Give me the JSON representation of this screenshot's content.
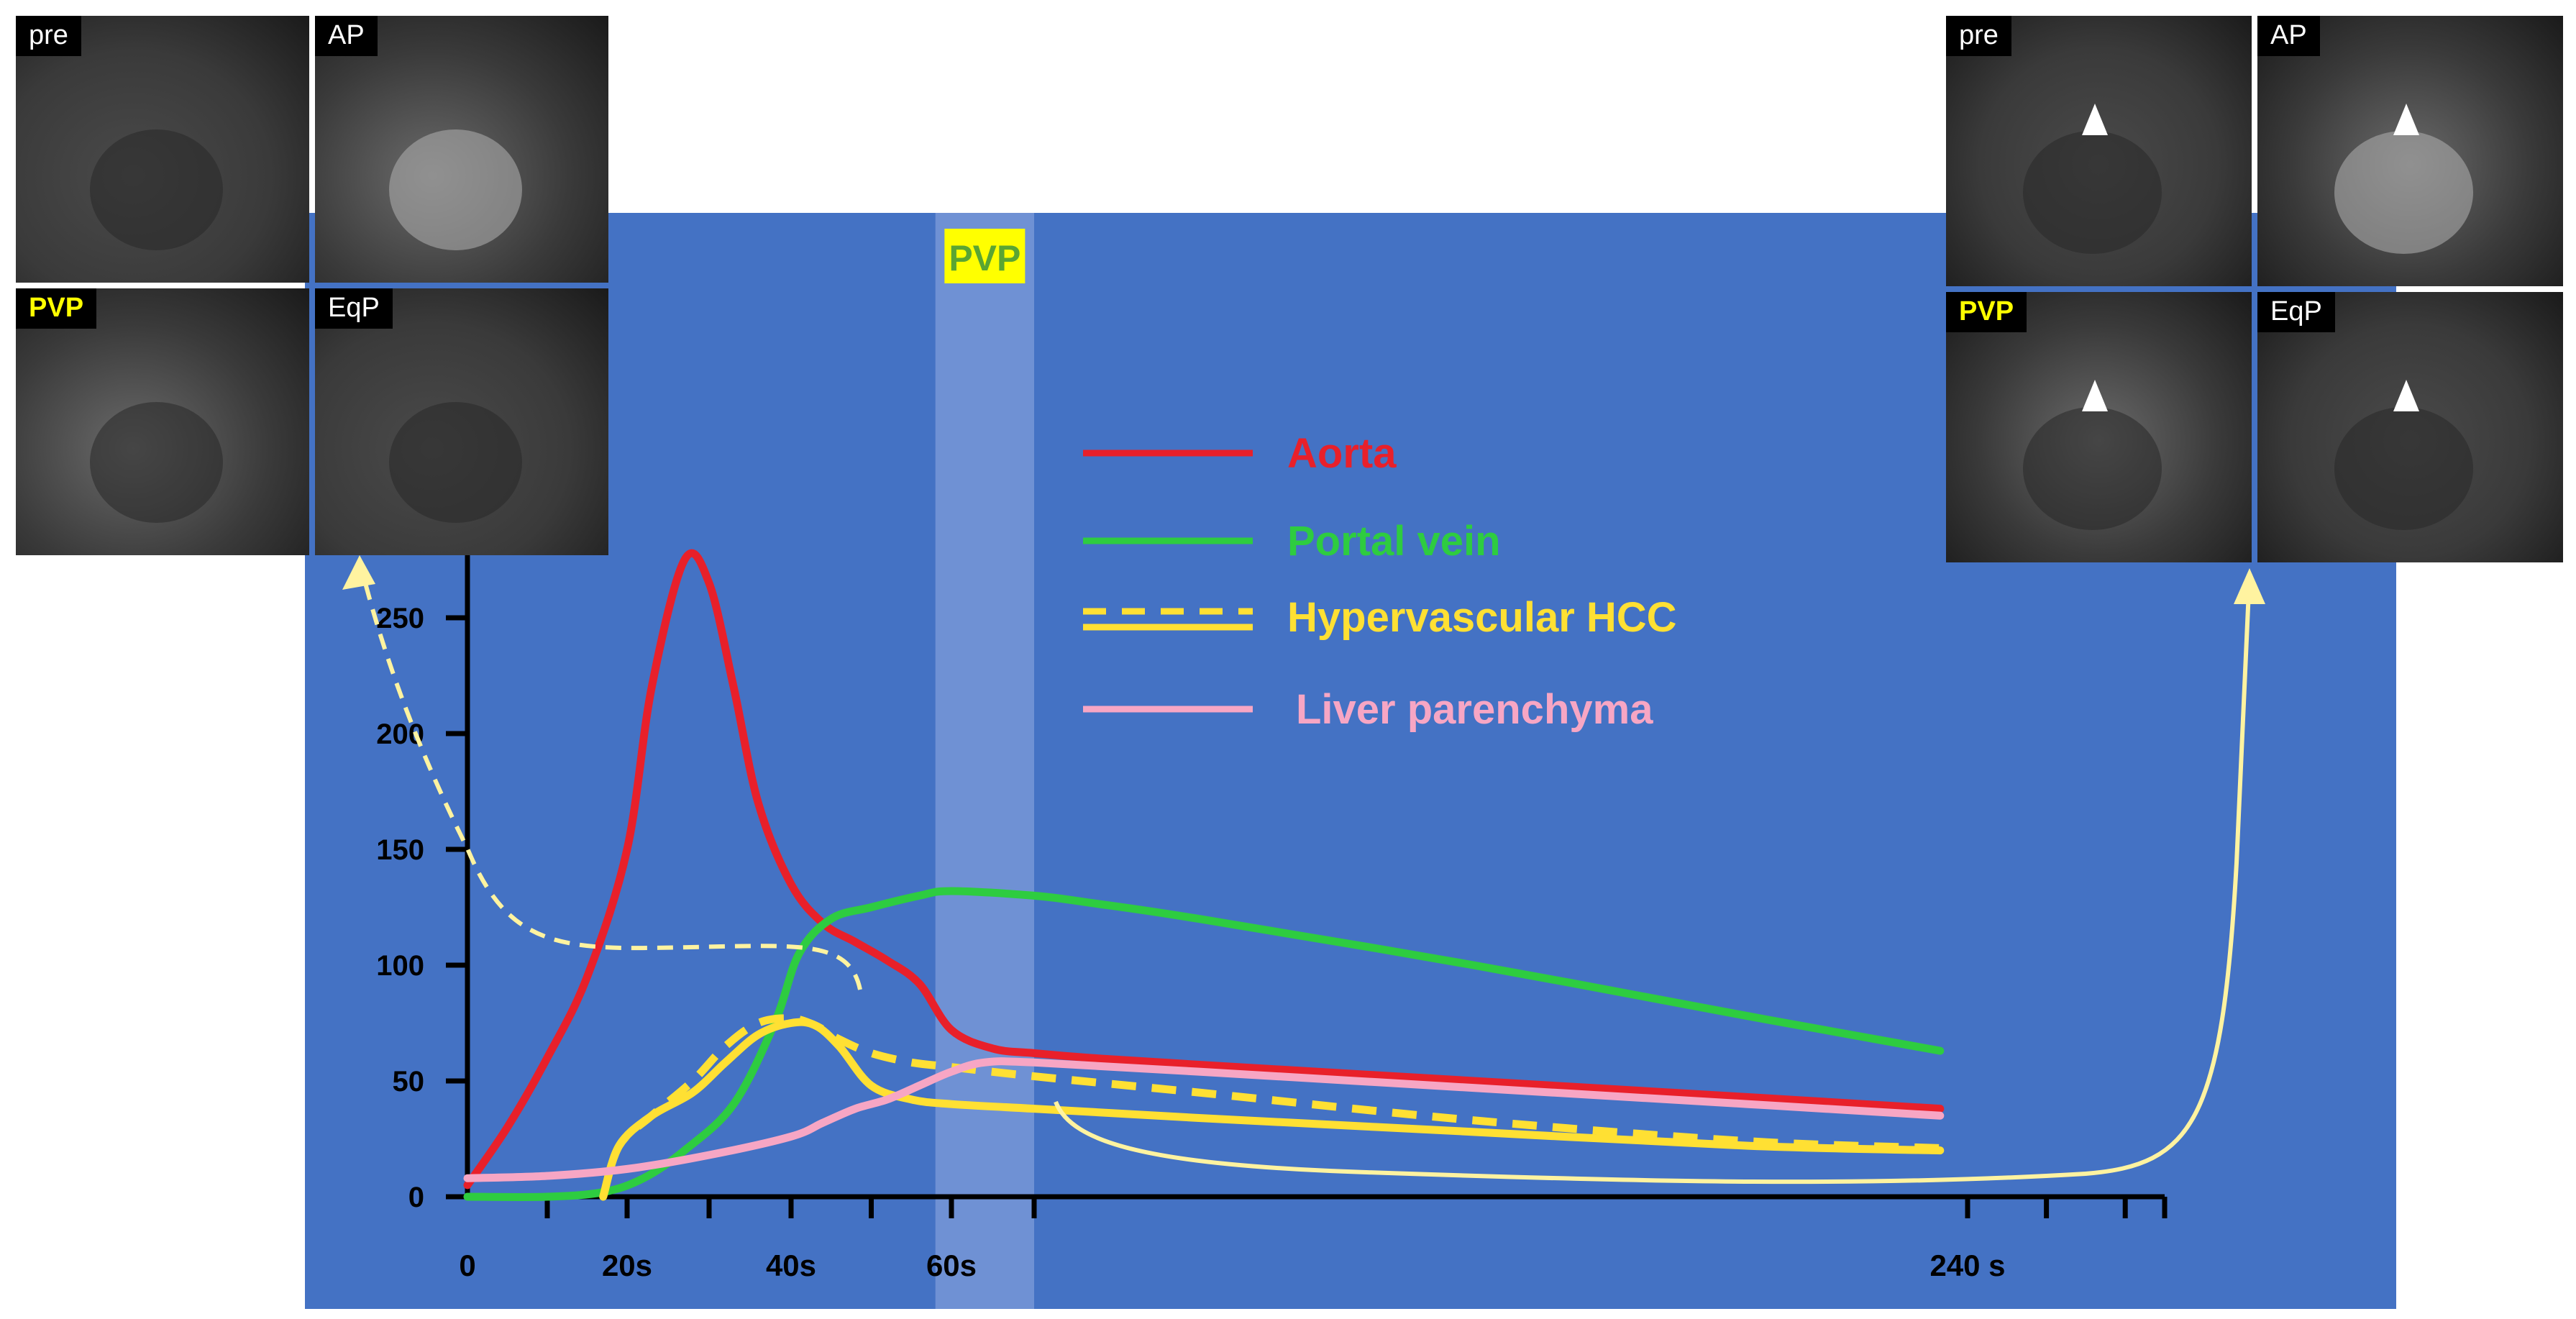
{
  "chart_data": {
    "type": "line",
    "xlabel": "",
    "ylabel": "",
    "xlim": [
      0,
      265
    ],
    "ylim": [
      0,
      275
    ],
    "x_tick_labels": [
      {
        "x": 0,
        "label": "0"
      },
      {
        "x": 20,
        "label": "20s"
      },
      {
        "x": 40,
        "label": "40s"
      },
      {
        "x": 60,
        "label": "60s"
      },
      {
        "x": 240,
        "label": "240 s"
      }
    ],
    "y_tick_labels": [
      {
        "y": 0,
        "label": "0"
      },
      {
        "y": 50,
        "label": "50"
      },
      {
        "y": 100,
        "label": "100"
      },
      {
        "y": 150,
        "label": "150"
      },
      {
        "y": 200,
        "label": "200"
      },
      {
        "y": 250,
        "label": "250"
      }
    ],
    "phase_band": {
      "label": "PVP",
      "x_start": 58,
      "x_end": 70
    },
    "series": [
      {
        "name": "Aorta",
        "color": "#e8202a",
        "style": "solid",
        "x": [
          0,
          5,
          10,
          15,
          20,
          23,
          27,
          30,
          33,
          36,
          40,
          44,
          48,
          52,
          56,
          60,
          65,
          70,
          80,
          100,
          150,
          200,
          235
        ],
        "y": [
          5,
          30,
          60,
          95,
          150,
          220,
          275,
          265,
          220,
          170,
          135,
          118,
          110,
          102,
          92,
          72,
          64,
          62,
          60,
          57,
          50,
          43,
          38
        ]
      },
      {
        "name": "Portal vein",
        "color": "#2ecc40",
        "style": "solid",
        "x": [
          0,
          10,
          17,
          22,
          27,
          33,
          38,
          41,
          45,
          50,
          56,
          60,
          70,
          80,
          100,
          150,
          200,
          235
        ],
        "y": [
          0,
          0,
          2,
          8,
          20,
          40,
          75,
          105,
          120,
          125,
          130,
          132,
          130,
          127,
          120,
          100,
          78,
          63
        ]
      },
      {
        "name": "Hypervascular HCC",
        "color": "#ffe033",
        "style": "solid",
        "x": [
          17,
          19,
          23,
          28,
          32,
          36,
          40,
          43,
          46,
          50,
          55,
          60,
          70,
          100,
          150,
          200,
          235
        ],
        "y": [
          0,
          22,
          35,
          45,
          58,
          70,
          75,
          74,
          65,
          48,
          42,
          40,
          38,
          34,
          28,
          22,
          20
        ]
      },
      {
        "name": "Hypervascular HCC",
        "color": "#ffe033",
        "style": "dashed",
        "x": [
          17,
          19,
          23,
          28,
          32,
          36,
          40,
          43,
          46,
          50,
          55,
          60,
          70,
          100,
          150,
          200,
          235
        ],
        "y": [
          0,
          22,
          35,
          50,
          65,
          75,
          77,
          74,
          68,
          62,
          58,
          56,
          52,
          45,
          33,
          24,
          21
        ]
      },
      {
        "name": "Liver parenchyma",
        "color": "#f7a6c4",
        "style": "solid",
        "x": [
          0,
          10,
          20,
          30,
          40,
          44,
          48,
          52,
          56,
          60,
          64,
          70,
          100,
          150,
          200,
          235
        ],
        "y": [
          8,
          9,
          12,
          18,
          26,
          32,
          38,
          42,
          48,
          54,
          58,
          58,
          54,
          47,
          40,
          35
        ]
      }
    ],
    "legend": [
      {
        "label": "Aorta",
        "color": "#e8202a",
        "style": "solid"
      },
      {
        "label": "Portal vein",
        "color": "#2ecc40",
        "style": "solid"
      },
      {
        "label": "Hypervascular HCC",
        "color": "#ffe033",
        "style": "solid-dashed"
      },
      {
        "label": "Liver parenchyma",
        "color": "#f7a6c4",
        "style": "solid"
      }
    ],
    "legend_position": "top-center",
    "grid": false,
    "background_color": "#4472c4"
  },
  "ct_groups": {
    "left": {
      "panels": [
        {
          "label": "pre",
          "highlight": false
        },
        {
          "label": "AP",
          "highlight": false
        },
        {
          "label": "PVP",
          "highlight": true
        },
        {
          "label": "EqP",
          "highlight": false
        }
      ]
    },
    "right": {
      "panels": [
        {
          "label": "pre",
          "highlight": false
        },
        {
          "label": "AP",
          "highlight": false
        },
        {
          "label": "PVP",
          "highlight": true
        },
        {
          "label": "EqP",
          "highlight": false
        }
      ]
    }
  },
  "colors": {
    "pvp_label_fill": "#ffff00",
    "pvp_label_text": "#5aa532",
    "pvp_band": "#6f91d4",
    "annotation_arrow": "#fff3a0"
  }
}
